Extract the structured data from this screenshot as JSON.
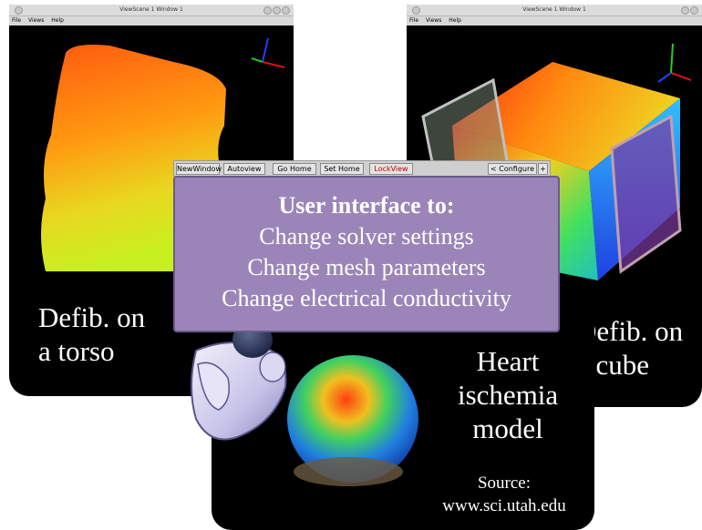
{
  "left_window": {
    "title": "ViewScene 1 Window 1",
    "menu": [
      "File",
      "Views",
      "Help"
    ],
    "caption_line1": "Defib. on",
    "caption_line2": "a torso"
  },
  "right_window": {
    "title": "ViewScene 1 Window 1",
    "menu": [
      "File",
      "Views",
      "Help"
    ],
    "caption_line1": "Defib. on",
    "caption_line2": "a cube"
  },
  "toolbar": {
    "new_window": "NewWindow",
    "autoview": "Autoview",
    "go_home": "Go Home",
    "set_home": "Set Home",
    "lock_view": "LockView",
    "configure": "< Configure >",
    "plus": "+"
  },
  "callout": {
    "title": "User interface to:",
    "line1": "Change solver settings",
    "line2": "Change mesh parameters",
    "line3": "Change electrical conductivity"
  },
  "bottom_panel": {
    "caption_line1": "Heart",
    "caption_line2": "ischemia",
    "caption_line3": "model",
    "source_label": "Source:",
    "source_url": "www.sci.utah.edu"
  },
  "colors": {
    "callout_fill": "#9b85b8",
    "lock_view_text": "#c00000",
    "panel_bg": "#000000"
  }
}
